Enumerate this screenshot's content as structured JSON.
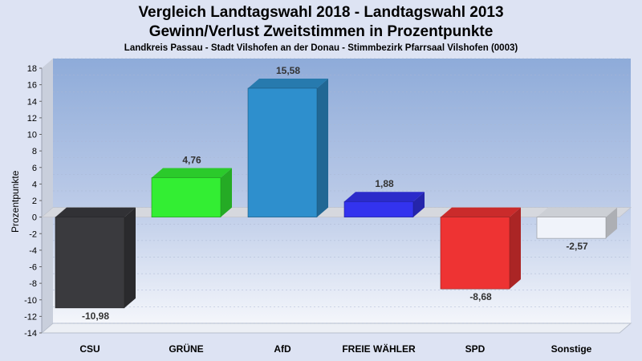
{
  "chart_data": {
    "type": "bar",
    "title": "Vergleich Landtagswahl 2018 - Landtagswahl 2013",
    "subtitle": "Gewinn/Verlust Zweitstimmen in Prozentpunkte",
    "caption": "Landkreis Passau - Stadt Vilshofen an der Donau - Stimmbezirk Pfarrsaal Vilshofen (0003)",
    "ylabel": "Prozentpunkte",
    "xlabel": "",
    "ylim": [
      -14,
      18
    ],
    "yticks": [
      18,
      16,
      14,
      12,
      10,
      8,
      6,
      4,
      2,
      0,
      -2,
      -4,
      -6,
      -8,
      -10,
      -12,
      -14
    ],
    "grid": true,
    "categories": [
      "CSU",
      "GRÜNE",
      "AfD",
      "FREIE WÄHLER",
      "SPD",
      "Sonstige"
    ],
    "values": [
      -10.98,
      4.76,
      15.58,
      1.88,
      -8.68,
      -2.57
    ],
    "value_labels": [
      "-10,98",
      "4,76",
      "15,58",
      "1,88",
      "-8,68",
      "-2,57"
    ],
    "colors": [
      "#3a3a3e",
      "#33ee33",
      "#2e8fcd",
      "#3333ee",
      "#ee3333",
      "#f0f3fa"
    ]
  }
}
